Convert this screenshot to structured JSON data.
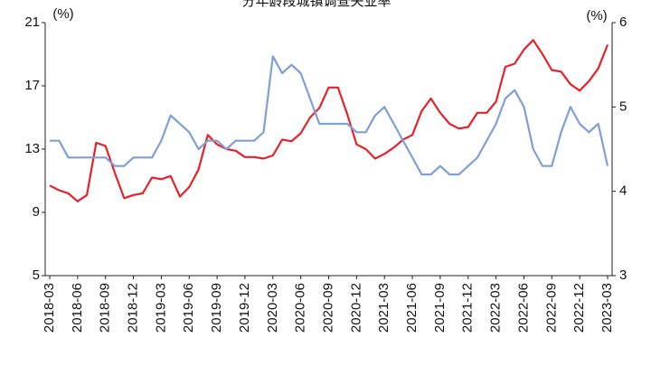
{
  "chart_data": {
    "type": "line",
    "title": "分年龄段城镇调查失业率",
    "y_label": "(%)",
    "y2_label": "(%)",
    "categories": [
      "2018-03",
      null,
      null,
      "2018-06",
      null,
      null,
      "2018-09",
      null,
      null,
      "2018-12",
      null,
      null,
      "2019-03",
      null,
      null,
      "2019-06",
      null,
      null,
      "2019-09",
      null,
      null,
      "2019-12",
      null,
      null,
      "2020-03",
      null,
      null,
      "2020-06",
      null,
      null,
      "2020-09",
      null,
      null,
      "2020-12",
      null,
      null,
      "2021-03",
      null,
      null,
      "2021-06",
      null,
      null,
      "2021-09",
      null,
      null,
      "2021-12",
      null,
      null,
      "2022-03",
      null,
      null,
      "2022-06",
      null,
      null,
      "2022-09",
      null,
      null,
      "2022-12",
      null,
      null,
      "2023-03"
    ],
    "series": [
      {
        "color": "#e8202a",
        "axis": "y",
        "values": [
          10.7,
          10.4,
          10.2,
          9.7,
          10.1,
          13.4,
          13.2,
          11.5,
          9.9,
          10.1,
          10.2,
          11.2,
          11.1,
          11.3,
          10.0,
          10.6,
          11.7,
          13.9,
          13.3,
          13.0,
          12.9,
          12.5,
          12.5,
          12.4,
          12.6,
          13.6,
          13.5,
          14.0,
          15.0,
          15.6,
          16.9,
          16.9,
          15.2,
          13.3,
          13.0,
          12.4,
          12.7,
          13.1,
          13.6,
          13.9,
          15.4,
          16.2,
          15.3,
          14.6,
          14.3,
          14.4,
          15.3,
          15.3,
          16.0,
          18.2,
          18.4,
          19.3,
          19.9,
          19.0,
          18.0,
          17.9,
          17.1,
          16.7,
          17.3,
          18.1,
          19.6
        ]
      },
      {
        "color": "#7f9fd6",
        "axis": "y2",
        "values": [
          4.6,
          4.6,
          4.4,
          4.4,
          4.4,
          4.4,
          4.4,
          4.3,
          4.3,
          4.4,
          4.4,
          4.4,
          4.6,
          4.9,
          4.8,
          4.7,
          4.5,
          4.6,
          4.6,
          4.5,
          4.6,
          4.6,
          4.6,
          4.7,
          5.6,
          5.4,
          5.5,
          5.4,
          5.1,
          4.8,
          4.8,
          4.8,
          4.8,
          4.7,
          4.7,
          4.9,
          5.0,
          4.8,
          4.6,
          4.4,
          4.2,
          4.2,
          4.3,
          4.2,
          4.2,
          4.3,
          4.4,
          4.6,
          4.8,
          5.1,
          5.2,
          5.0,
          4.5,
          4.3,
          4.3,
          4.7,
          5.0,
          4.8,
          4.7,
          4.8,
          4.3
        ]
      }
    ],
    "ylim": [
      5,
      21
    ],
    "yticks": [
      5,
      9,
      13,
      17,
      21
    ],
    "y2lim": [
      3,
      6
    ],
    "y2ticks": [
      3,
      4,
      5,
      6
    ]
  }
}
